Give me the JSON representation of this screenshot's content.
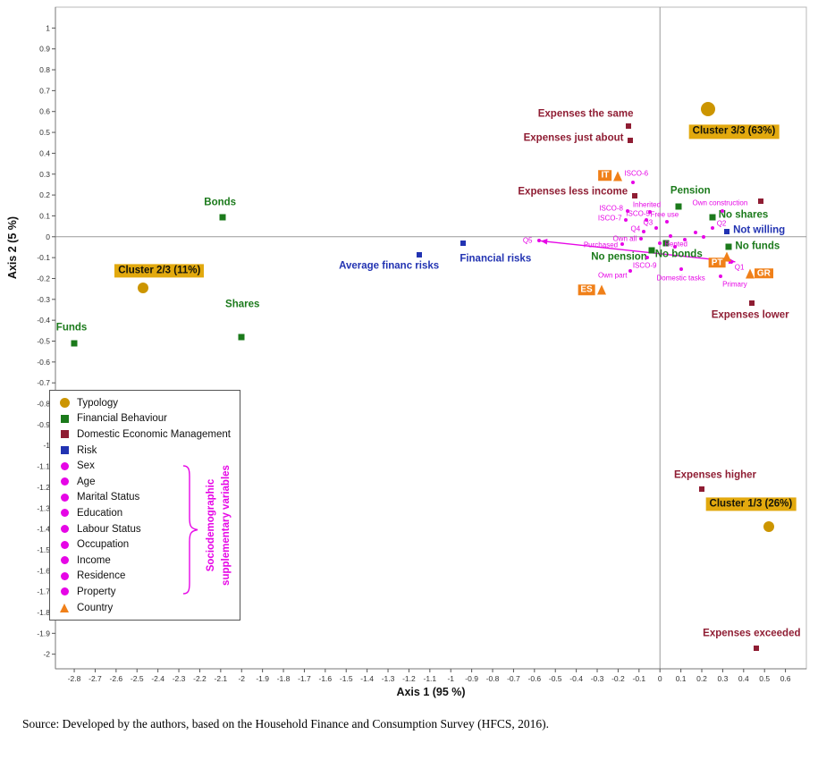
{
  "page": {
    "source_note": "Source: Developed by the authors, based on the Household Finance and Consumption Survey (HFCS, 2016)."
  },
  "chart_data": {
    "type": "scatter",
    "xlabel": "Axis 1 (95 %)",
    "ylabel": "Axis 2 (5 %)",
    "xlim": [
      -2.89,
      0.7
    ],
    "ylim": [
      -2.07,
      1.1
    ],
    "grid": false,
    "x_ticks": [
      "-2.8",
      "-2.7",
      "-2.6",
      "-2.5",
      "-2.4",
      "-2.3",
      "-2.2",
      "-2.1",
      "-2",
      "-1.9",
      "-1.8",
      "-1.7",
      "-1.6",
      "-1.5",
      "-1.4",
      "-1.3",
      "-1.2",
      "-1.1",
      "-1",
      "-0.9",
      "-0.8",
      "-0.7",
      "-0.6",
      "-0.5",
      "-0.4",
      "-0.3",
      "-0.2",
      "-0.1",
      "0",
      "0.1",
      "0.2",
      "0.3",
      "0.4",
      "0.5",
      "0.6"
    ],
    "y_ticks": [
      "1",
      "0.9",
      "0.8",
      "0.7",
      "0.6",
      "0.5",
      "0.4",
      "0.3",
      "0.2",
      "0.1",
      "0",
      "-0.1",
      "-0.2",
      "-0.3",
      "-0.4",
      "-0.5",
      "-0.6",
      "-0.7",
      "-0.8",
      "-0.9",
      "-1",
      "-1.1",
      "-1.2",
      "-1.3",
      "-1.4",
      "-1.5",
      "-1.6",
      "-1.7",
      "-1.8",
      "-1.9",
      "-2"
    ],
    "colors": {
      "typology": "#CC9500",
      "typology_badge": "#E2A90E",
      "financial": "#1B7A1B",
      "dem": "#8F1D33",
      "risk": "#2233B2",
      "socio": "#E606E6",
      "country": "#F08019"
    },
    "series": [
      {
        "name": "Typology",
        "marker": "circle",
        "color_key": "typology",
        "size": 12,
        "label_style": "badge",
        "points": [
          {
            "label": "Cluster 3/3 (63%)",
            "x": 0.23,
            "y": 0.61,
            "size": 16,
            "dx": 29,
            "dy": 25,
            "anchor": "middle"
          },
          {
            "label": "Cluster 2/3 (11%)",
            "x": -2.47,
            "y": -0.245,
            "dx": 18,
            "dy": -19,
            "anchor": "middle"
          },
          {
            "label": "Cluster 1/3 (26%)",
            "x": 0.52,
            "y": -1.39,
            "dx": -20,
            "dy": -25,
            "anchor": "middle"
          }
        ]
      },
      {
        "name": "Financial Behaviour",
        "marker": "square",
        "color_key": "financial",
        "size": 7,
        "label_style": "cat",
        "points": [
          {
            "label": "Bonds",
            "x": -2.09,
            "y": 0.095,
            "dx": -3,
            "dy": -16,
            "anchor": "middle"
          },
          {
            "label": "Shares",
            "x": -2.0,
            "y": -0.48,
            "dx": 1,
            "dy": -36,
            "anchor": "middle"
          },
          {
            "label": "Funds",
            "x": -2.8,
            "y": -0.51,
            "dx": -3,
            "dy": -17,
            "anchor": "middle"
          },
          {
            "label": "Pension",
            "x": 0.09,
            "y": 0.145,
            "dx": 13,
            "dy": -17,
            "anchor": "middle"
          },
          {
            "label": "No shares",
            "x": 0.25,
            "y": 0.095,
            "dx": 7,
            "dy": -2,
            "anchor": "start"
          },
          {
            "label": "No funds",
            "x": 0.33,
            "y": -0.05,
            "dx": 7,
            "dy": 0,
            "anchor": "start"
          },
          {
            "label": "No pension",
            "x": -0.04,
            "y": -0.065,
            "dx": -5,
            "dy": 8,
            "anchor": "end"
          },
          {
            "label": "No bonds",
            "x": 0.03,
            "y": -0.03,
            "dx": 14,
            "dy": 13,
            "anchor": "middle"
          }
        ]
      },
      {
        "name": "Domestic Economic Management",
        "marker": "square",
        "color_key": "dem",
        "size": 6,
        "label_style": "cat",
        "points": [
          {
            "label": "Expenses the same",
            "x": -0.15,
            "y": 0.53,
            "dx": -48,
            "dy": -13,
            "anchor": "middle"
          },
          {
            "label": "Expenses just about",
            "x": -0.14,
            "y": 0.46,
            "dx": -8,
            "dy": -2,
            "anchor": "end"
          },
          {
            "label": "Expenses less income",
            "x": -0.12,
            "y": 0.197,
            "dx": -8,
            "dy": -4,
            "anchor": "end"
          },
          {
            "label": "Expenses lower",
            "x": 0.44,
            "y": -0.32,
            "dx": -2,
            "dy": 14,
            "anchor": "middle"
          },
          {
            "label": "Expenses higher",
            "x": 0.2,
            "y": -1.21,
            "dx": 15,
            "dy": -15,
            "anchor": "middle"
          },
          {
            "label": "Expenses exceeded",
            "x": 0.46,
            "y": -1.97,
            "dx": -5,
            "dy": -16,
            "anchor": "middle"
          },
          {
            "label": "",
            "x": 0.48,
            "y": 0.17
          }
        ]
      },
      {
        "name": "Risk",
        "marker": "square",
        "color_key": "risk",
        "size": 6,
        "label_style": "cat",
        "points": [
          {
            "label": "Average financ risks",
            "x": -1.15,
            "y": -0.085,
            "dx": -34,
            "dy": 13,
            "anchor": "middle"
          },
          {
            "label": "Financial risks",
            "x": -0.94,
            "y": -0.03,
            "dx": 36,
            "dy": 18,
            "anchor": "middle"
          },
          {
            "label": "Not willing",
            "x": 0.32,
            "y": 0.025,
            "dx": 7,
            "dy": -1,
            "anchor": "start"
          }
        ]
      },
      {
        "name": "Sociodemographic supplementary variables",
        "marker": "dot",
        "color_key": "socio",
        "size": 4,
        "label_style": "tiny",
        "points": [
          {
            "label": "ISCO-6",
            "x": -0.13,
            "y": 0.26,
            "dx": 4,
            "dy": -10,
            "anchor": "middle"
          },
          {
            "label": "Inherited",
            "x": -0.05,
            "y": 0.12,
            "dx": -3,
            "dy": -8,
            "anchor": "middle"
          },
          {
            "label": "ISCO-8",
            "x": -0.155,
            "y": 0.125,
            "dx": -5,
            "dy": -3,
            "anchor": "end"
          },
          {
            "label": "ISCO-5",
            "x": -0.065,
            "y": 0.08,
            "dx": 4,
            "dy": -7,
            "anchor": "end"
          },
          {
            "label": "ISCO-7",
            "x": -0.165,
            "y": 0.08,
            "dx": -4,
            "dy": -2,
            "anchor": "end"
          },
          {
            "label": "Free use",
            "x": 0.035,
            "y": 0.07,
            "dx": -3,
            "dy": -8,
            "anchor": "middle"
          },
          {
            "label": "Q3",
            "x": -0.017,
            "y": 0.042,
            "dx": -4,
            "dy": -6,
            "anchor": "end"
          },
          {
            "label": "Q4",
            "x": -0.077,
            "y": 0.025,
            "dx": -4,
            "dy": -3,
            "anchor": "end"
          },
          {
            "label": "Q2",
            "x": 0.25,
            "y": 0.04,
            "dx": 5,
            "dy": -5,
            "anchor": "start"
          },
          {
            "label": "Own construction",
            "x": 0.3,
            "y": 0.125,
            "dx": -3,
            "dy": -9,
            "anchor": "middle"
          },
          {
            "label": "Q5",
            "x": -0.58,
            "y": -0.02,
            "dx": -7,
            "dy": 0,
            "anchor": "end"
          },
          {
            "label": "Own all",
            "x": -0.09,
            "y": -0.01,
            "dx": -5,
            "dy": 0,
            "anchor": "end"
          },
          {
            "label": "Rented",
            "x": 0.0,
            "y": -0.03,
            "dx": 5,
            "dy": 1,
            "anchor": "start"
          },
          {
            "label": "Purchased",
            "x": -0.18,
            "y": -0.035,
            "dx": -5,
            "dy": 1,
            "anchor": "end"
          },
          {
            "label": "ISCO-9",
            "x": -0.06,
            "y": -0.1,
            "dx": -3,
            "dy": 9,
            "anchor": "middle"
          },
          {
            "label": "Own part",
            "x": -0.14,
            "y": -0.165,
            "dx": -4,
            "dy": 5,
            "anchor": "end"
          },
          {
            "label": "Domestic tasks",
            "x": 0.1,
            "y": -0.155,
            "dx": 0,
            "dy": 10,
            "anchor": "middle"
          },
          {
            "label": "Primary",
            "x": 0.29,
            "y": -0.19,
            "dx": 2,
            "dy": 9,
            "anchor": "start"
          },
          {
            "label": "Q1",
            "x": 0.34,
            "y": -0.12,
            "dx": 4,
            "dy": 6,
            "anchor": "start"
          },
          {
            "label": "",
            "x": 0.05,
            "y": 0.005
          },
          {
            "label": "",
            "x": 0.12,
            "y": -0.015
          },
          {
            "label": "",
            "x": 0.17,
            "y": 0.02
          },
          {
            "label": "",
            "x": 0.21,
            "y": 0.0
          },
          {
            "label": "",
            "x": 0.07,
            "y": -0.05
          }
        ]
      },
      {
        "name": "Country",
        "marker": "triangle",
        "color_key": "country",
        "size": 11,
        "label_style": "box",
        "points": [
          {
            "label": "IT",
            "x": -0.2,
            "y": 0.29,
            "dx": -7,
            "dy": -1,
            "anchor": "end"
          },
          {
            "label": "ES",
            "x": -0.28,
            "y": -0.255,
            "dx": -7,
            "dy": 0,
            "anchor": "end"
          },
          {
            "label": "PT",
            "x": 0.32,
            "y": -0.095,
            "dx": -11,
            "dy": 7,
            "anchor": "middle"
          },
          {
            "label": "GR",
            "x": 0.43,
            "y": -0.175,
            "dx": 5,
            "dy": 0,
            "anchor": "start"
          }
        ]
      }
    ],
    "arrow": {
      "x1": -0.57,
      "y1": -0.02,
      "x2": 0.36,
      "y2": -0.12
    }
  },
  "legend": {
    "items": [
      {
        "label": "Typology",
        "marker": "circle",
        "color_key": "typology"
      },
      {
        "label": "Financial Behaviour",
        "marker": "square",
        "color_key": "financial"
      },
      {
        "label": "Domestic Economic Management",
        "marker": "square",
        "color_key": "dem"
      },
      {
        "label": "Risk",
        "marker": "square",
        "color_key": "risk"
      },
      {
        "label": "Sex",
        "marker": "dot",
        "color_key": "socio"
      },
      {
        "label": "Age",
        "marker": "dot",
        "color_key": "socio"
      },
      {
        "label": "Marital Status",
        "marker": "dot",
        "color_key": "socio"
      },
      {
        "label": "Education",
        "marker": "dot",
        "color_key": "socio"
      },
      {
        "label": "Labour Status",
        "marker": "dot",
        "color_key": "socio"
      },
      {
        "label": "Occupation",
        "marker": "dot",
        "color_key": "socio"
      },
      {
        "label": "Income",
        "marker": "dot",
        "color_key": "socio"
      },
      {
        "label": "Residence",
        "marker": "dot",
        "color_key": "socio"
      },
      {
        "label": "Property",
        "marker": "dot",
        "color_key": "socio"
      },
      {
        "label": "Country",
        "marker": "triangle",
        "color_key": "country"
      }
    ],
    "brace_label_line1": "Sociodemographic",
    "brace_label_line2": "supplementary variables"
  }
}
